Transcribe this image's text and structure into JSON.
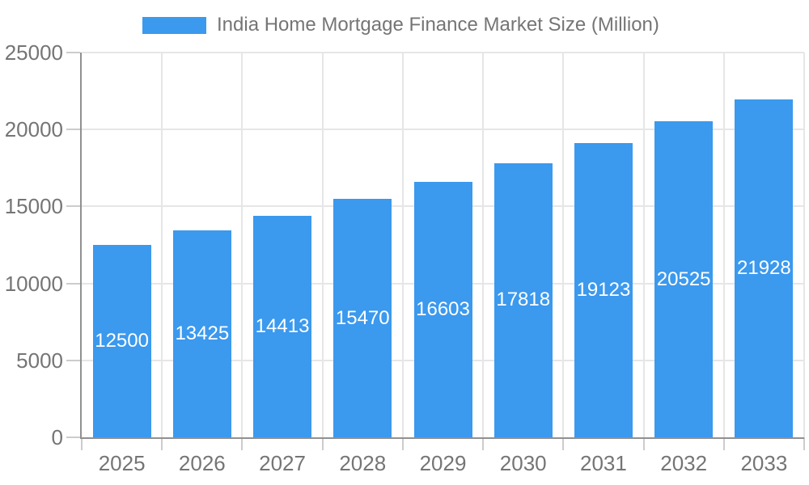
{
  "chart_data": {
    "type": "bar",
    "legend_label": "India Home Mortgage Finance Market Size (Million)",
    "legend_position": "top",
    "categories": [
      "2025",
      "2026",
      "2027",
      "2028",
      "2029",
      "2030",
      "2031",
      "2032",
      "2033"
    ],
    "values": [
      12500,
      13425,
      14413,
      15470,
      16603,
      17818,
      19123,
      20525,
      21928
    ],
    "bar_value_labels": [
      "12500",
      "13425",
      "14413",
      "15470",
      "16603",
      "17818",
      "19123",
      "20525",
      "21928"
    ],
    "xlabel": "",
    "ylabel": "",
    "ylim": [
      0,
      25000
    ],
    "yticks": [
      0,
      5000,
      10000,
      15000,
      20000,
      25000
    ],
    "grid": "horizontal-and-vertical",
    "colors": {
      "bar": "#3b99ee",
      "bar_label": "#ffffff",
      "axis_text": "#757575",
      "gridline": "#e6e6e6",
      "tick": "#cccccc",
      "axis_line": "#909090",
      "background": "#ffffff"
    }
  }
}
